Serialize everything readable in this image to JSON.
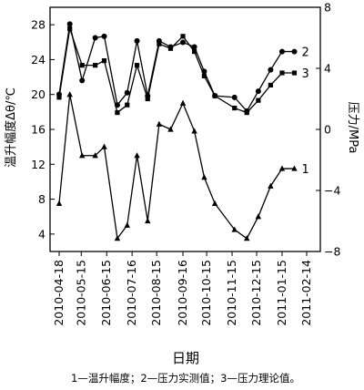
{
  "chart_data": {
    "type": "line",
    "x_ticks": [
      "2010-04-18",
      "2010-05-15",
      "2010-06-15",
      "2010-07-16",
      "2010-08-15",
      "2010-09-16",
      "2010-10-15",
      "2010-11-15",
      "2010-12-15",
      "2011-01-15",
      "2011-02-14"
    ],
    "xlabel": "日期",
    "ylabel_left": "温升幅度Δθ/℃",
    "ylabel_right": "压力/MPa",
    "ylim_left": [
      2,
      30
    ],
    "ylim_right": [
      -8,
      8
    ],
    "yticks_left": [
      4,
      8,
      12,
      16,
      20,
      24,
      28
    ],
    "yticks_right": [
      -8,
      -4,
      0,
      4,
      8
    ],
    "grid": false,
    "caption": "1—温升幅度；2—压力实测值；3—压力理论值。",
    "series": [
      {
        "name": "1",
        "axis": "left",
        "marker": "triangle",
        "x": [
          "2010-04-18",
          "2010-05-01",
          "2010-05-16",
          "2010-06-01",
          "2010-06-12",
          "2010-06-28",
          "2010-07-10",
          "2010-07-22",
          "2010-08-04",
          "2010-08-18",
          "2010-09-01",
          "2010-09-16",
          "2010-09-30",
          "2010-10-12",
          "2010-10-25",
          "2010-11-18",
          "2010-12-03",
          "2010-12-17",
          "2011-01-01",
          "2011-01-15",
          "2011-01-30"
        ],
        "values": [
          7.5,
          20.0,
          13.0,
          13.0,
          14.0,
          3.5,
          5.0,
          13.0,
          5.5,
          16.6,
          16.0,
          19.0,
          15.8,
          10.5,
          7.5,
          4.5,
          3.5,
          6.0,
          9.5,
          11.5,
          11.5
        ]
      },
      {
        "name": "2",
        "axis": "right",
        "marker": "circle",
        "x": [
          "2010-04-18",
          "2010-05-01",
          "2010-05-16",
          "2010-06-01",
          "2010-06-12",
          "2010-06-28",
          "2010-07-10",
          "2010-07-22",
          "2010-08-04",
          "2010-08-18",
          "2010-09-01",
          "2010-09-16",
          "2010-09-30",
          "2010-10-12",
          "2010-10-25",
          "2010-11-18",
          "2010-12-03",
          "2010-12-17",
          "2011-01-01",
          "2011-01-15",
          "2011-01-30"
        ],
        "values": [
          2.3,
          6.9,
          3.2,
          6.0,
          6.1,
          1.6,
          2.4,
          5.8,
          2.2,
          5.8,
          5.4,
          5.7,
          5.4,
          3.8,
          2.2,
          2.1,
          1.2,
          2.5,
          3.9,
          5.1,
          5.1
        ]
      },
      {
        "name": "3",
        "axis": "right",
        "marker": "square",
        "x": [
          "2010-04-18",
          "2010-05-01",
          "2010-05-16",
          "2010-06-01",
          "2010-06-12",
          "2010-06-28",
          "2010-07-10",
          "2010-07-22",
          "2010-08-04",
          "2010-08-18",
          "2010-09-01",
          "2010-09-16",
          "2010-09-30",
          "2010-10-12",
          "2010-10-25",
          "2010-11-18",
          "2010-12-03",
          "2010-12-17",
          "2011-01-01",
          "2011-01-15",
          "2011-01-30"
        ],
        "values": [
          2.1,
          6.6,
          4.2,
          4.2,
          4.5,
          1.1,
          1.6,
          4.2,
          2.0,
          5.6,
          5.3,
          6.1,
          5.1,
          3.5,
          2.2,
          1.4,
          1.1,
          1.9,
          2.9,
          3.7,
          3.7
        ]
      }
    ]
  }
}
